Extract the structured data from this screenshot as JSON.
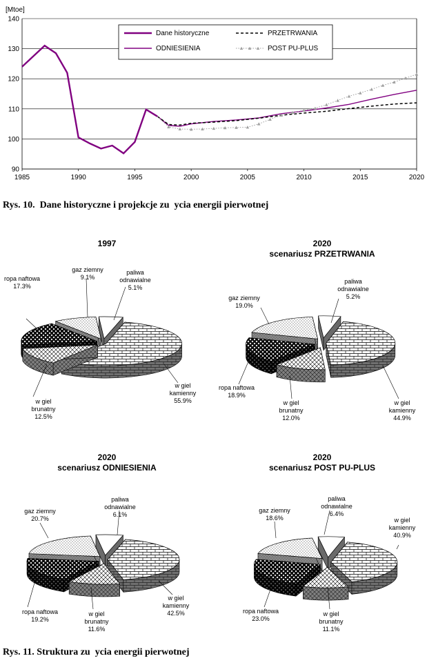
{
  "captions": {
    "fig10": "Rys. 10.  Dane historyczne i projekcje zu  ycia energii pierwotnej",
    "fig11": "Rys. 11. Struktura zu  ycia energii pierwotnej"
  },
  "chart_data": [
    {
      "type": "line",
      "ylabel": "[Mtoe]",
      "xlim": [
        1985,
        2020
      ],
      "ylim": [
        90,
        140
      ],
      "x_ticks": [
        "1985",
        "1990",
        "1995",
        "2000",
        "2005",
        "2010",
        "2015",
        "2020"
      ],
      "y_ticks": [
        "90",
        "100",
        "110",
        "120",
        "130",
        "140"
      ],
      "grid": true,
      "legend_position": "top-right",
      "series": [
        {
          "name": "Dane historyczne",
          "color": "#800080",
          "style": "solid-thick",
          "x": [
            1985,
            1986,
            1987,
            1988,
            1989,
            1990,
            1991,
            1992,
            1993,
            1994,
            1995,
            1996,
            1997
          ],
          "values": [
            124,
            127.5,
            131,
            128.5,
            122,
            100.5,
            98.5,
            96.8,
            97.8,
            95.2,
            99,
            109.8,
            107.5
          ]
        },
        {
          "name": "PRZETRWANIA",
          "color": "#000000",
          "style": "dashed",
          "x": [
            1997,
            1998,
            1999,
            2000,
            2002,
            2004,
            2006,
            2008,
            2010,
            2012,
            2014,
            2016,
            2018,
            2020
          ],
          "values": [
            107.5,
            104.8,
            104.6,
            105.2,
            105.6,
            106.1,
            106.9,
            107.9,
            108.6,
            109.2,
            110.1,
            110.9,
            111.6,
            112
          ]
        },
        {
          "name": "ODNIESIENIA",
          "color": "#800080",
          "style": "solid",
          "x": [
            1997,
            1998,
            1999,
            2000,
            2002,
            2004,
            2006,
            2008,
            2010,
            2012,
            2014,
            2016,
            2018,
            2020
          ],
          "values": [
            107.5,
            104.5,
            104.2,
            105,
            105.8,
            106.3,
            107,
            108.4,
            109.3,
            110.3,
            111.5,
            113.2,
            114.8,
            116.2
          ]
        },
        {
          "name": "POST  PU-PLUS",
          "color": "#a0a0a0",
          "style": "dotted-markers",
          "x": [
            1997,
            1998,
            1999,
            2000,
            2001,
            2002,
            2003,
            2004,
            2005,
            2006,
            2007,
            2008,
            2009,
            2010,
            2011,
            2012,
            2013,
            2014,
            2015,
            2016,
            2017,
            2018,
            2019,
            2020
          ],
          "values": [
            107.5,
            104,
            103.3,
            103.2,
            103.3,
            103.5,
            103.7,
            103.8,
            103.9,
            105,
            106.5,
            107.9,
            108.8,
            109.5,
            110.2,
            111.4,
            112.8,
            114.2,
            115.3,
            116.5,
            117.8,
            118.9,
            120.2,
            121.5
          ]
        }
      ]
    },
    {
      "type": "pie",
      "title": "1997",
      "subtitle": "",
      "slices": [
        {
          "label": "w  giel kamienny",
          "value": 55.9,
          "value_label": "55.9%",
          "fill": "brick"
        },
        {
          "label": "w  giel brunatny",
          "value": 12.5,
          "value_label": "12.5%",
          "fill": "crosshatch"
        },
        {
          "label": "ropa naftowa",
          "value": 17.3,
          "value_label": "17.3%",
          "fill": "dark-check"
        },
        {
          "label": "gaz ziemny",
          "value": 9.1,
          "value_label": "9.1%",
          "fill": "dots"
        },
        {
          "label": "paliwa odnawialne",
          "value": 5.1,
          "value_label": "5.1%",
          "fill": "white"
        }
      ]
    },
    {
      "type": "pie",
      "title": "2020",
      "subtitle": "scenariusz PRZETRWANIA",
      "slices": [
        {
          "label": "w  giel kamienny",
          "value": 44.9,
          "value_label": "44.9%",
          "fill": "brick"
        },
        {
          "label": "w  giel brunatny",
          "value": 12.0,
          "value_label": "12.0%",
          "fill": "crosshatch"
        },
        {
          "label": "ropa naftowa",
          "value": 18.9,
          "value_label": "18.9%",
          "fill": "dark-check"
        },
        {
          "label": "gaz ziemny",
          "value": 19.0,
          "value_label": "19.0%",
          "fill": "dots"
        },
        {
          "label": "paliwa odnawialne",
          "value": 5.2,
          "value_label": "5.2%",
          "fill": "white"
        }
      ]
    },
    {
      "type": "pie",
      "title": "2020",
      "subtitle": "scenariusz ODNIESIENIA",
      "slices": [
        {
          "label": "w  giel kamienny",
          "value": 42.5,
          "value_label": "42.5%",
          "fill": "brick"
        },
        {
          "label": "w  giel brunatny",
          "value": 11.6,
          "value_label": "11.6%",
          "fill": "crosshatch"
        },
        {
          "label": "ropa naftowa",
          "value": 19.2,
          "value_label": "19.2%",
          "fill": "dark-check"
        },
        {
          "label": "gaz ziemny",
          "value": 20.7,
          "value_label": "20.7%",
          "fill": "dots"
        },
        {
          "label": "paliwa odnawialne",
          "value": 6.1,
          "value_label": "6.1%",
          "fill": "white"
        }
      ]
    },
    {
      "type": "pie",
      "title": "2020",
      "subtitle": "scenariusz POST   PU-PLUS",
      "slices": [
        {
          "label": "w  giel kamienny",
          "value": 40.9,
          "value_label": "40.9%",
          "fill": "brick"
        },
        {
          "label": "w  giel brunatny",
          "value": 11.1,
          "value_label": "11.1%",
          "fill": "crosshatch"
        },
        {
          "label": "ropa naftowa",
          "value": 23.0,
          "value_label": "23.0%",
          "fill": "dark-check"
        },
        {
          "label": "gaz ziemny",
          "value": 18.6,
          "value_label": "18.6%",
          "fill": "dots"
        },
        {
          "label": "paliwa odnawialne",
          "value": 6.4,
          "value_label": "6.4%",
          "fill": "white"
        }
      ]
    }
  ]
}
